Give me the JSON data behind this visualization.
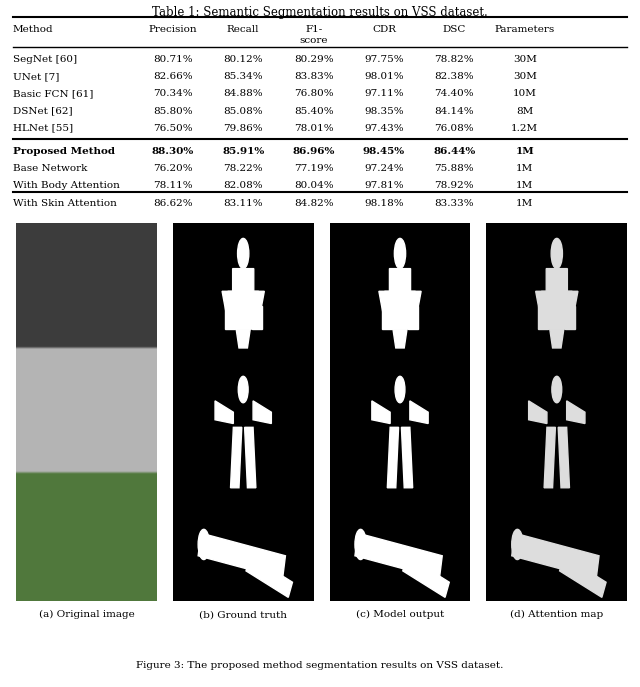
{
  "table_title": "Table 1: Semantic Segmentation results on VSS dataset.",
  "col_headers": [
    "Method",
    "Precision",
    "Recall",
    "F1-\nscore",
    "CDR",
    "DSC",
    "Parameters"
  ],
  "rows": [
    [
      "SegNet [60]",
      "80.71%",
      "80.12%",
      "80.29%",
      "97.75%",
      "78.82%",
      "30M"
    ],
    [
      "UNet [7]",
      "82.66%",
      "85.34%",
      "83.83%",
      "98.01%",
      "82.38%",
      "30M"
    ],
    [
      "Basic FCN [61]",
      "70.34%",
      "84.88%",
      "76.80%",
      "97.11%",
      "74.40%",
      "10M"
    ],
    [
      "DSNet [62]",
      "85.80%",
      "85.08%",
      "85.40%",
      "98.35%",
      "84.14%",
      "8M"
    ],
    [
      "HLNet [55]",
      "76.50%",
      "79.86%",
      "78.01%",
      "97.43%",
      "76.08%",
      "1.2M"
    ]
  ],
  "bold_row": [
    "Proposed Method",
    "88.30%",
    "85.91%",
    "86.96%",
    "98.45%",
    "86.44%",
    "1M"
  ],
  "sub_rows": [
    [
      "Base Network",
      "76.20%",
      "78.22%",
      "77.19%",
      "97.24%",
      "75.88%",
      "1M"
    ],
    [
      "With Body Attention",
      "78.11%",
      "82.08%",
      "80.04%",
      "97.81%",
      "78.92%",
      "1M"
    ],
    [
      "With Skin Attention",
      "86.62%",
      "83.11%",
      "84.82%",
      "98.18%",
      "83.33%",
      "1M"
    ]
  ],
  "subfig_labels": [
    "(a) Original image",
    "(b) Ground truth",
    "(c) Model output",
    "(d) Attention map"
  ],
  "figure_caption": "Figure 3: The proposed method segmentation results on VSS dataset.",
  "bg_color": "#ffffff",
  "text_color": "#000000",
  "line_color": "#000000"
}
